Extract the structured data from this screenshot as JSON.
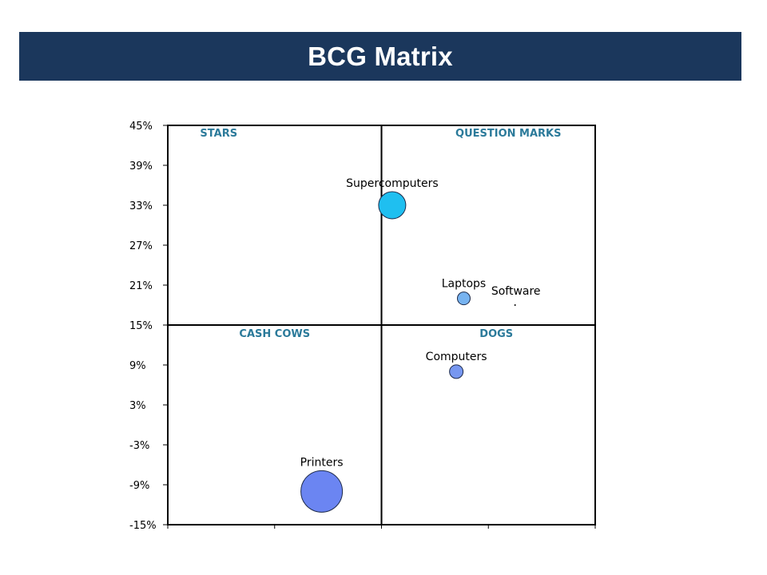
{
  "slide": {
    "title": "BCG Matrix",
    "title_bar_color": "#1b375c",
    "title_text_color": "#ffffff"
  },
  "chart_data": {
    "type": "bubble",
    "title": "",
    "xlabel": "",
    "ylabel": "",
    "ylim": [
      -15,
      45
    ],
    "xlim": [
      0,
      4
    ],
    "x_divider": 2,
    "y_divider": 15,
    "y_ticks": [
      "45%",
      "39%",
      "33%",
      "27%",
      "21%",
      "15%",
      "9%",
      "3%",
      "-3%",
      "-9%",
      "-15%"
    ],
    "y_tick_values": [
      45,
      39,
      33,
      27,
      21,
      15,
      9,
      3,
      -3,
      -9,
      -15
    ],
    "grid": false,
    "quadrants": [
      {
        "name": "STARS",
        "position": "top-left"
      },
      {
        "name": "QUESTION MARKS",
        "position": "top-right"
      },
      {
        "name": "CASH COWS",
        "position": "bottom-left"
      },
      {
        "name": "DOGS",
        "position": "bottom-right"
      }
    ],
    "points": [
      {
        "label": "Supercomputers",
        "x": 2.1,
        "y": 33,
        "size": 17,
        "color": "#1fbff0"
      },
      {
        "label": "Laptops",
        "x": 2.77,
        "y": 19,
        "size": 8,
        "color": "#77b3f0"
      },
      {
        "label": "Software",
        "x": 3.25,
        "y": 18,
        "size": 1,
        "color": "#000000"
      },
      {
        "label": "Computers",
        "x": 2.7,
        "y": 8,
        "size": 8.5,
        "color": "#7797f0"
      },
      {
        "label": "Printers",
        "x": 1.44,
        "y": -10,
        "size": 26,
        "color": "#6b85f2"
      }
    ],
    "colors": {
      "frame": "#000000",
      "quadrant_label": "#2b7a9a"
    }
  }
}
